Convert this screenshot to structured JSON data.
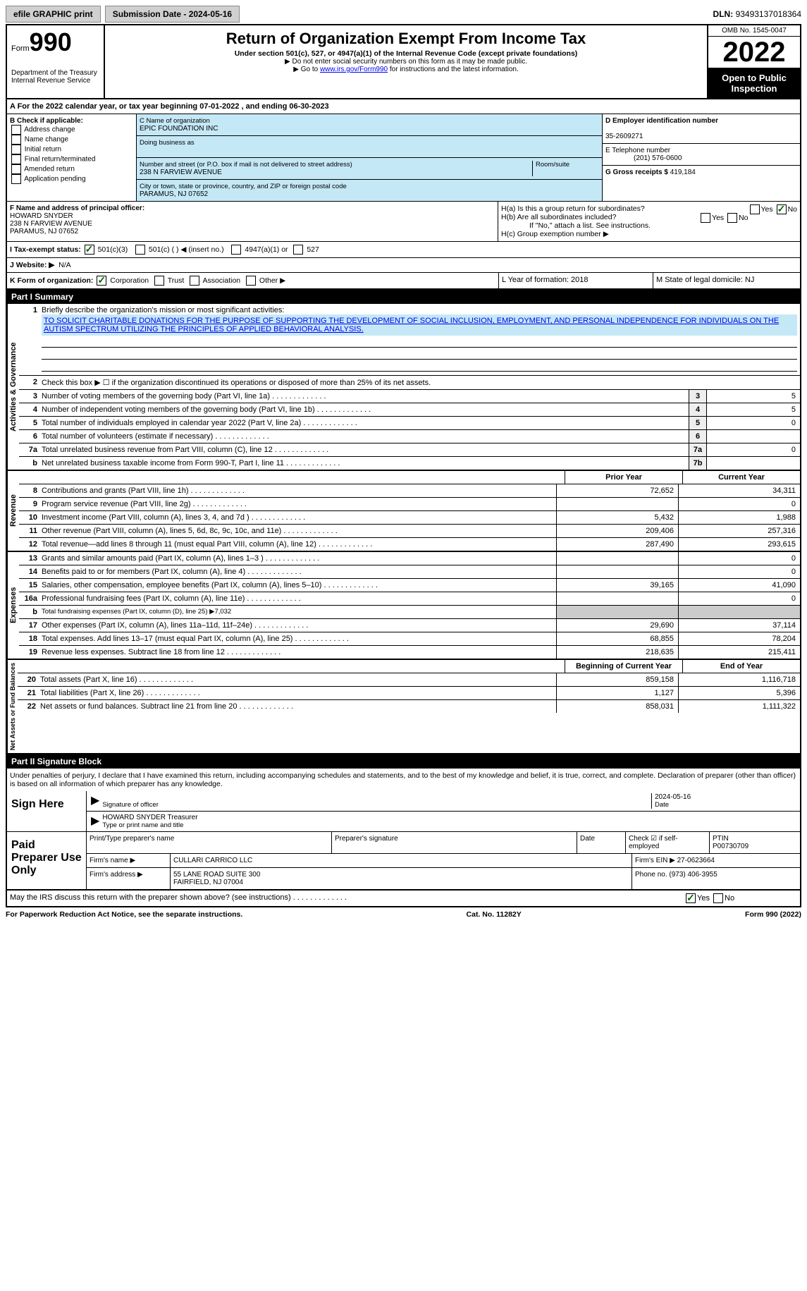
{
  "topbar": {
    "efile": "efile GRAPHIC print",
    "submission": "Submission Date - 2024-05-16",
    "dln_label": "DLN:",
    "dln": "93493137018364"
  },
  "header": {
    "form": "Form",
    "num": "990",
    "dept": "Department of the Treasury\nInternal Revenue Service",
    "title": "Return of Organization Exempt From Income Tax",
    "subtitle": "Under section 501(c), 527, or 4947(a)(1) of the Internal Revenue Code (except private foundations)",
    "note1": "▶ Do not enter social security numbers on this form as it may be made public.",
    "note2_pre": "▶ Go to ",
    "note2_link": "www.irs.gov/Form990",
    "note2_post": " for instructions and the latest information.",
    "omb": "OMB No. 1545-0047",
    "year": "2022",
    "otp": "Open to Public Inspection"
  },
  "lineA": "A For the 2022 calendar year, or tax year beginning 07-01-2022   , and ending 06-30-2023",
  "boxB": {
    "label": "B Check if applicable:",
    "opts": [
      "Address change",
      "Name change",
      "Initial return",
      "Final return/terminated",
      "Amended return",
      "Application pending"
    ]
  },
  "boxC": {
    "nameLabel": "C Name of organization",
    "name": "EPIC FOUNDATION INC",
    "dba": "Doing business as",
    "addrLabel": "Number and street (or P.O. box if mail is not delivered to street address)",
    "room": "Room/suite",
    "addr": "238 N FARVIEW AVENUE",
    "cityLabel": "City or town, state or province, country, and ZIP or foreign postal code",
    "city": "PARAMUS, NJ  07652"
  },
  "boxD": {
    "einLabel": "D Employer identification number",
    "ein": "35-2609271",
    "telLabel": "E Telephone number",
    "tel": "(201) 576-0600",
    "grossLabel": "G Gross receipts $",
    "gross": "419,184"
  },
  "boxF": {
    "label": "F Name and address of principal officer:",
    "name": "HOWARD SNYDER",
    "addr1": "238 N FARVIEW AVENUE",
    "addr2": "PARAMUS, NJ  07652"
  },
  "boxH": {
    "ha": "H(a)  Is this a group return for subordinates?",
    "hb": "H(b)  Are all subordinates included?",
    "hbnote": "If \"No,\" attach a list. See instructions.",
    "hc": "H(c)  Group exemption number ▶"
  },
  "status": {
    "label": "I   Tax-exempt status:",
    "o1": "501(c)(3)",
    "o2": "501(c) (   ) ◀ (insert no.)",
    "o3": "4947(a)(1) or",
    "o4": "527"
  },
  "lineJ": {
    "label": "J   Website: ▶",
    "val": "N/A"
  },
  "lineK": {
    "label": "K Form of organization:",
    "o1": "Corporation",
    "o2": "Trust",
    "o3": "Association",
    "o4": "Other ▶",
    "L": "L Year of formation: 2018",
    "M": "M State of legal domicile: NJ"
  },
  "part1": {
    "title": "Part I     Summary",
    "l1": "Briefly describe the organization's mission or most significant activities:",
    "mission": "TO SOLICIT CHARITABLE DONATIONS FOR THE PURPOSE OF SUPPORTING THE DEVELOPMENT OF SOCIAL INCLUSION, EMPLOYMENT, AND PERSONAL INDEPENDENCE FOR INDIVIDUALS ON THE AUTISM SPECTRUM UTILIZING THE PRINCIPLES OF APPLIED BEHAVIORAL ANALYSIS.",
    "l2": "Check this box ▶ ☐ if the organization discontinued its operations or disposed of more than 25% of its net assets.",
    "rows": [
      {
        "n": "3",
        "t": "Number of voting members of the governing body (Part VI, line 1a)",
        "b": "3",
        "v": "5"
      },
      {
        "n": "4",
        "t": "Number of independent voting members of the governing body (Part VI, line 1b)",
        "b": "4",
        "v": "5"
      },
      {
        "n": "5",
        "t": "Total number of individuals employed in calendar year 2022 (Part V, line 2a)",
        "b": "5",
        "v": "0"
      },
      {
        "n": "6",
        "t": "Total number of volunteers (estimate if necessary)",
        "b": "6",
        "v": ""
      },
      {
        "n": "7a",
        "t": "Total unrelated business revenue from Part VIII, column (C), line 12",
        "b": "7a",
        "v": "0"
      },
      {
        "n": "b",
        "t": "Net unrelated business taxable income from Form 990-T, Part I, line 11",
        "b": "7b",
        "v": ""
      }
    ],
    "prior": "Prior Year",
    "current": "Current Year",
    "revenue": [
      {
        "n": "8",
        "t": "Contributions and grants (Part VIII, line 1h)",
        "p": "72,652",
        "c": "34,311"
      },
      {
        "n": "9",
        "t": "Program service revenue (Part VIII, line 2g)",
        "p": "",
        "c": "0"
      },
      {
        "n": "10",
        "t": "Investment income (Part VIII, column (A), lines 3, 4, and 7d )",
        "p": "5,432",
        "c": "1,988"
      },
      {
        "n": "11",
        "t": "Other revenue (Part VIII, column (A), lines 5, 6d, 8c, 9c, 10c, and 11e)",
        "p": "209,406",
        "c": "257,316"
      },
      {
        "n": "12",
        "t": "Total revenue—add lines 8 through 11 (must equal Part VIII, column (A), line 12)",
        "p": "287,490",
        "c": "293,615"
      }
    ],
    "expenses": [
      {
        "n": "13",
        "t": "Grants and similar amounts paid (Part IX, column (A), lines 1–3 )",
        "p": "",
        "c": "0"
      },
      {
        "n": "14",
        "t": "Benefits paid to or for members (Part IX, column (A), line 4)",
        "p": "",
        "c": "0"
      },
      {
        "n": "15",
        "t": "Salaries, other compensation, employee benefits (Part IX, column (A), lines 5–10)",
        "p": "39,165",
        "c": "41,090"
      },
      {
        "n": "16a",
        "t": "Professional fundraising fees (Part IX, column (A), line 11e)",
        "p": "",
        "c": "0"
      },
      {
        "n": "b",
        "t": "Total fundraising expenses (Part IX, column (D), line 25) ▶7,032",
        "shade": true
      },
      {
        "n": "17",
        "t": "Other expenses (Part IX, column (A), lines 11a–11d, 11f–24e)",
        "p": "29,690",
        "c": "37,114"
      },
      {
        "n": "18",
        "t": "Total expenses. Add lines 13–17 (must equal Part IX, column (A), line 25)",
        "p": "68,855",
        "c": "78,204"
      },
      {
        "n": "19",
        "t": "Revenue less expenses. Subtract line 18 from line 12",
        "p": "218,635",
        "c": "215,411"
      }
    ],
    "begin": "Beginning of Current Year",
    "end": "End of Year",
    "net": [
      {
        "n": "20",
        "t": "Total assets (Part X, line 16)",
        "p": "859,158",
        "c": "1,116,718"
      },
      {
        "n": "21",
        "t": "Total liabilities (Part X, line 26)",
        "p": "1,127",
        "c": "5,396"
      },
      {
        "n": "22",
        "t": "Net assets or fund balances. Subtract line 21 from line 20",
        "p": "858,031",
        "c": "1,111,322"
      }
    ]
  },
  "part2": {
    "title": "Part II    Signature Block",
    "decl": "Under penalties of perjury, I declare that I have examined this return, including accompanying schedules and statements, and to the best of my knowledge and belief, it is true, correct, and complete. Declaration of preparer (other than officer) is based on all information of which preparer has any knowledge.",
    "signhere": "Sign Here",
    "sigoff": "Signature of officer",
    "date": "Date",
    "sigdate": "2024-05-16",
    "printed": "HOWARD SNYDER  Treasurer",
    "printedlabel": "Type or print name and title",
    "paid": "Paid Preparer Use Only",
    "r1": [
      "Print/Type preparer's name",
      "Preparer's signature",
      "Date",
      "Check ☑ if self-employed",
      "PTIN\nP00730709"
    ],
    "r2": [
      "Firm's name    ▶",
      "CULLARI CARRICO LLC",
      "Firm's EIN ▶ 27-0623664"
    ],
    "r3": [
      "Firm's address ▶",
      "55 LANE ROAD SUITE 300\nFAIRFIELD, NJ  07004",
      "Phone no. (973) 406-3955"
    ],
    "may": "May the IRS discuss this return with the preparer shown above? (see instructions)"
  },
  "footer": {
    "l": "For Paperwork Reduction Act Notice, see the separate instructions.",
    "c": "Cat. No. 11282Y",
    "r": "Form 990 (2022)"
  },
  "tabs": {
    "ag": "Activities & Governance",
    "rev": "Revenue",
    "exp": "Expenses",
    "net": "Net Assets or Fund Balances"
  }
}
